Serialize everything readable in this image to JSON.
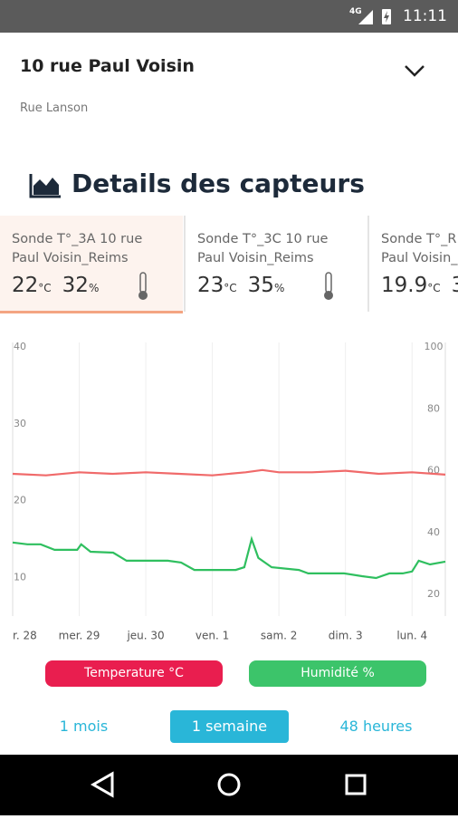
{
  "status_bar": {
    "network": "4G",
    "time": "11:11"
  },
  "header": {
    "title": "10 rue Paul Voisin",
    "subtitle": "Rue Lanson"
  },
  "section_title": "Details des capteurs",
  "sensors": [
    {
      "name_lines": [
        "Sonde T°_3A 10 rue",
        "Paul Voisin_Reims"
      ],
      "temperature": 22,
      "temperature_unit": "°C",
      "humidity": 32,
      "humidity_unit": "%",
      "selected": true
    },
    {
      "name_lines": [
        "Sonde T°_3C 10 rue",
        "Paul Voisin_Reims"
      ],
      "temperature": 23,
      "temperature_unit": "°C",
      "humidity": 35,
      "humidity_unit": "%",
      "selected": false
    },
    {
      "name_lines": [
        "Sonde T°_R",
        "Paul Voisin_"
      ],
      "temperature": 19.9,
      "temperature_unit": "°C",
      "humidity": 3,
      "humidity_unit": "",
      "selected": false
    }
  ],
  "chart_data": {
    "type": "line",
    "xlim": [
      0,
      6.5
    ],
    "xticks": [
      {
        "value": 0,
        "label": "r. 28"
      },
      {
        "value": 1,
        "label": "mer. 29"
      },
      {
        "value": 2,
        "label": "jeu. 30"
      },
      {
        "value": 3,
        "label": "ven. 1"
      },
      {
        "value": 4,
        "label": "sam. 2"
      },
      {
        "value": 5,
        "label": "dim. 3"
      },
      {
        "value": 6,
        "label": "lun. 4"
      }
    ],
    "ylim": [
      5,
      40
    ],
    "yticks": [
      10,
      20,
      30,
      40
    ],
    "y2lim": [
      13,
      100
    ],
    "y2ticks": [
      20,
      40,
      60,
      80,
      100
    ],
    "series": [
      {
        "name": "Temperature °C",
        "color": "#e91e4f",
        "line_color": "#f06a6a",
        "axis": "y",
        "x": [
          0,
          0.5,
          1,
          1.5,
          2,
          2.5,
          3,
          3.5,
          3.75,
          4,
          4.5,
          5,
          5.5,
          6,
          6.5
        ],
        "values": [
          23.5,
          23.3,
          23.7,
          23.5,
          23.7,
          23.5,
          23.3,
          23.7,
          24.0,
          23.7,
          23.7,
          23.9,
          23.5,
          23.7,
          23.4
        ]
      },
      {
        "name": "Humidité %",
        "color": "#3cc46a",
        "line_color": "#2fbf5f",
        "axis": "y2",
        "x": [
          0,
          0.22,
          0.42,
          0.63,
          0.97,
          1.03,
          1.17,
          1.51,
          1.71,
          2.33,
          2.53,
          2.73,
          3.35,
          3.48,
          3.59,
          3.69,
          3.89,
          4.3,
          4.44,
          4.98,
          5.25,
          5.46,
          5.66,
          5.86,
          6.0,
          6.1,
          6.27,
          6.5
        ],
        "values": [
          36.8,
          36.2,
          36.2,
          34.4,
          34.4,
          36.2,
          33.8,
          33.5,
          30.9,
          30.9,
          30.3,
          27.9,
          27.9,
          28.8,
          37.9,
          31.8,
          28.8,
          27.9,
          26.8,
          26.8,
          25.9,
          25.3,
          26.8,
          26.8,
          27.4,
          30.9,
          29.7,
          30.6
        ]
      }
    ]
  },
  "ranges": [
    {
      "label": "1 mois",
      "selected": false
    },
    {
      "label": "1 semaine",
      "selected": true
    },
    {
      "label": "48 heures",
      "selected": false
    }
  ]
}
